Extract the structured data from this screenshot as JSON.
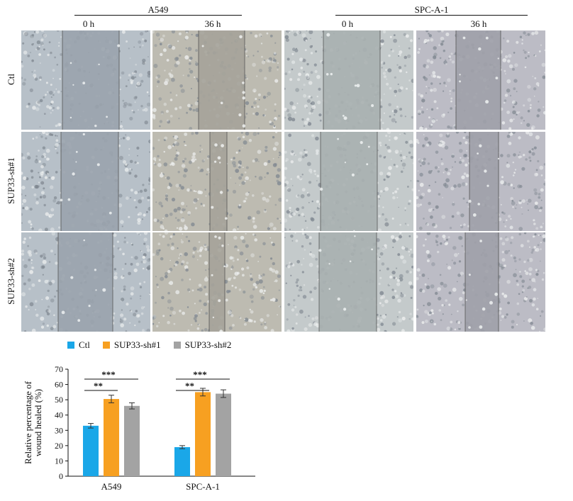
{
  "figure": {
    "groups": [
      {
        "name": "A549",
        "timepoints": [
          "0 h",
          "36 h"
        ]
      },
      {
        "name": "SPC-A-1",
        "timepoints": [
          "0 h",
          "36 h"
        ]
      }
    ],
    "rows": [
      "Ctl",
      "SUP33-sh#1",
      "SUP33-sh#2"
    ],
    "colors": {
      "ctl": "#1aa7e8",
      "sh1": "#f7a021",
      "sh2": "#a3a3a3"
    }
  },
  "chart_data": {
    "type": "bar",
    "categories": [
      "A549",
      "SPC-A-1"
    ],
    "series": [
      {
        "name": "Ctl",
        "values": [
          33,
          19
        ],
        "errors": [
          1.5,
          1.0
        ]
      },
      {
        "name": "SUP33-sh#1",
        "values": [
          50.5,
          55
        ],
        "errors": [
          2.5,
          2.5
        ]
      },
      {
        "name": "SUP33-sh#2",
        "values": [
          46,
          54
        ],
        "errors": [
          2.0,
          2.5
        ]
      }
    ],
    "ylabel": "Relative percentage of wound healed (%)",
    "ylabel_lines": [
      "Relative percentage of",
      "wound healed (%)"
    ],
    "ylim": [
      0,
      70
    ],
    "yticks": [
      0,
      10,
      20,
      30,
      40,
      50,
      60,
      70
    ],
    "significance": [
      {
        "category": "A549",
        "from": "Ctl",
        "to": "SUP33-sh#1",
        "label": "**"
      },
      {
        "category": "A549",
        "from": "Ctl",
        "to": "SUP33-sh#2",
        "label": "***"
      },
      {
        "category": "SPC-A-1",
        "from": "Ctl",
        "to": "SUP33-sh#1",
        "label": "**"
      },
      {
        "category": "SPC-A-1",
        "from": "Ctl",
        "to": "SUP33-sh#2",
        "label": "***"
      }
    ],
    "legend_position": "top"
  }
}
